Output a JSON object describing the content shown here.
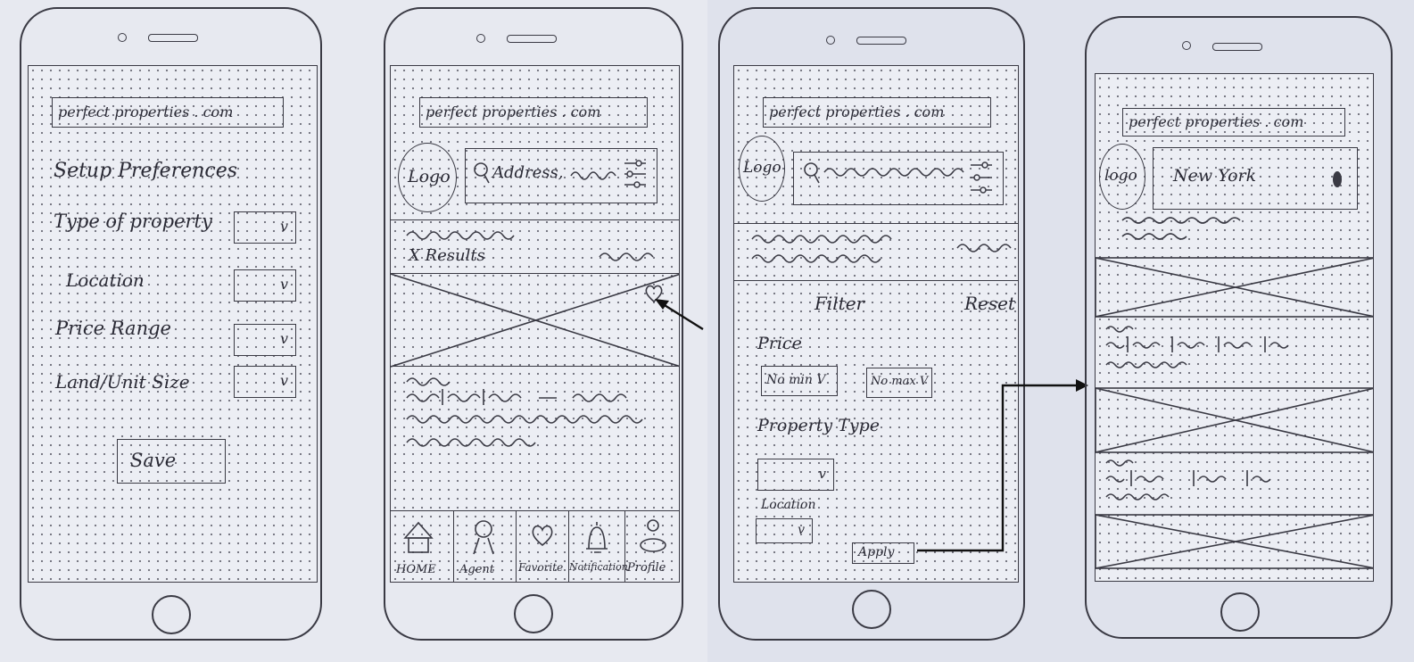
{
  "screen1": {
    "url": "perfect properties . com",
    "title": "Setup Preferences",
    "fields": [
      {
        "label": "Type of property",
        "value": "v"
      },
      {
        "label": "Location",
        "value": "v"
      },
      {
        "label": "Price Range",
        "value": "v"
      },
      {
        "label": "Land/Unit Size",
        "value": "v"
      }
    ],
    "save": "Save"
  },
  "screen2": {
    "url": "perfect properties . com",
    "logo": "Logo",
    "search": "Address,",
    "results": "X Results",
    "nav": [
      "HOME",
      "Agent",
      "Favorite",
      "Notification",
      "Profile"
    ]
  },
  "screen3": {
    "url": "perfect properties . com",
    "logo": "Logo",
    "filter": "Filter",
    "reset": "Reset",
    "price_label": "Price",
    "min": "No min V",
    "max": "No max V",
    "property_type_label": "Property Type",
    "property_type_value": "v",
    "location_label": "Location",
    "location_value": "v",
    "apply": "Apply"
  },
  "screen4": {
    "url": "perfect properties . com",
    "logo": "logo",
    "search": "New York"
  },
  "icons": {
    "search": "search-icon",
    "filter": "filter-sliders-icon",
    "heart": "heart-icon",
    "home": "home-icon",
    "agent": "agent-person-icon",
    "favorite": "favorite-heart-icon",
    "notification": "bell-icon",
    "profile": "profile-icon",
    "mic": "mic-icon"
  },
  "colors": {
    "ink": "#3a3a44",
    "paper": "#e9eaf0"
  }
}
